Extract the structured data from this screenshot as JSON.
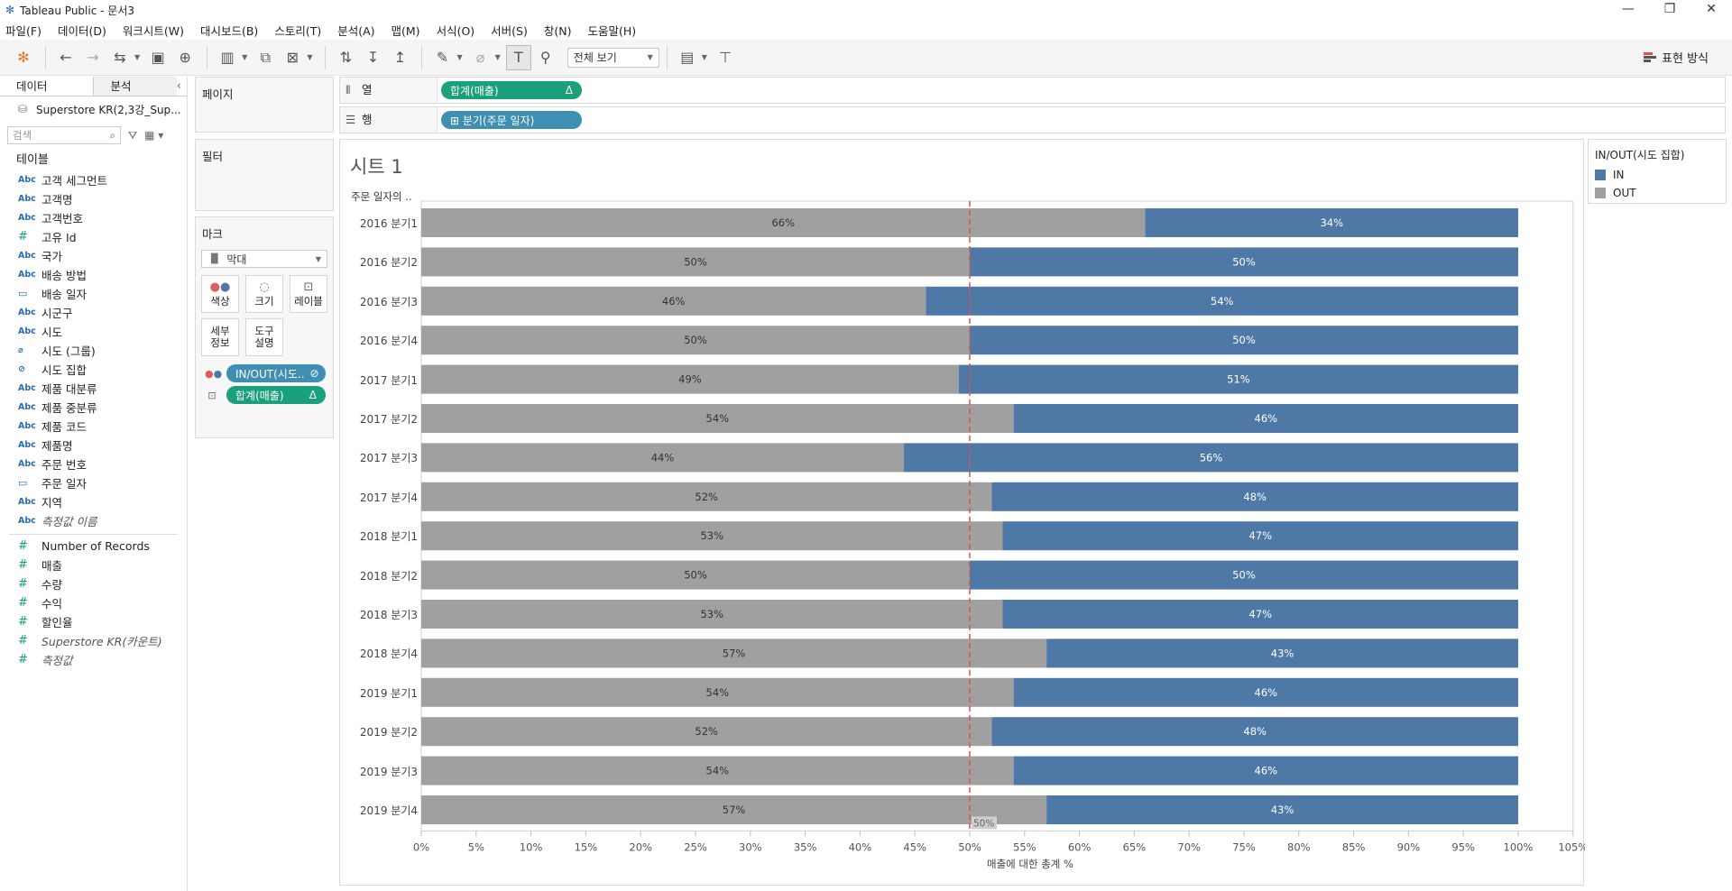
{
  "window": {
    "title": "Tableau Public - 문서3",
    "controls": [
      "—",
      "❐",
      "✕"
    ]
  },
  "menu": [
    "파일(F)",
    "데이터(D)",
    "워크시트(W)",
    "대시보드(B)",
    "스토리(T)",
    "분석(A)",
    "맵(M)",
    "서식(O)",
    "서버(S)",
    "창(N)",
    "도움말(H)"
  ],
  "toolbar": {
    "view_select": "전체 보기",
    "show_me": "표현 방식"
  },
  "data_pane": {
    "tab_data": "데이터",
    "tab_analysis": "분석",
    "datasource": "Superstore KR(2,3강_Sup...",
    "search_placeholder": "검색",
    "tables_title": "테이블",
    "dimensions": [
      {
        "type": "Abc",
        "label": "고객 세그먼트"
      },
      {
        "type": "Abc",
        "label": "고객명"
      },
      {
        "type": "Abc",
        "label": "고객번호"
      },
      {
        "type": "#",
        "label": "고유 Id"
      },
      {
        "type": "Abc",
        "label": "국가"
      },
      {
        "type": "Abc",
        "label": "배송 방법"
      },
      {
        "type": "date",
        "label": "배송 일자"
      },
      {
        "type": "Abc",
        "label": "시군구"
      },
      {
        "type": "Abc",
        "label": "시도"
      },
      {
        "type": "clip",
        "label": "시도 (그룹)"
      },
      {
        "type": "set",
        "label": "시도 집합"
      },
      {
        "type": "Abc",
        "label": "제품 대분류"
      },
      {
        "type": "Abc",
        "label": "제품 중분류"
      },
      {
        "type": "Abc",
        "label": "제품 코드"
      },
      {
        "type": "Abc",
        "label": "제품명"
      },
      {
        "type": "Abc",
        "label": "주문 번호"
      },
      {
        "type": "date",
        "label": "주문 일자"
      },
      {
        "type": "Abc",
        "label": "지역"
      },
      {
        "type": "Abc",
        "label": "측정값 이름",
        "italic": true
      }
    ],
    "measures": [
      {
        "label": "Number of Records"
      },
      {
        "label": "매출"
      },
      {
        "label": "수량"
      },
      {
        "label": "수익"
      },
      {
        "label": "할인율"
      },
      {
        "label": "Superstore KR(카운트)",
        "italic": true
      },
      {
        "label": "측정값",
        "italic": true
      }
    ]
  },
  "cards": {
    "pages": "페이지",
    "filters": "필터",
    "marks": "마크",
    "mark_type": "막대",
    "mark_buttons": {
      "color": "색상",
      "size": "크기",
      "label": "레이블",
      "detail": "세부\n정보",
      "tooltip": "도구\n설명"
    },
    "mark_pills": [
      {
        "label": "IN/OUT(시도..",
        "suffix": "⊘",
        "color": "blue"
      },
      {
        "label": "합계(매출)",
        "suffix": "Δ",
        "color": "green"
      }
    ]
  },
  "shelves": {
    "columns_label": "열",
    "columns_pill": "합계(매출)",
    "columns_pill_suffix": "Δ",
    "rows_label": "행",
    "rows_pill": "⊞ 분기(주문 일자)"
  },
  "sheet": {
    "title": "시트 1",
    "row_header": "주문 일자의 ..",
    "x_axis_title": "매출에 대한 총계 %",
    "reference_label": "50%"
  },
  "legend": {
    "title": "IN/OUT(시도 집합)",
    "items": [
      {
        "label": "IN",
        "color": "#4e79a7"
      },
      {
        "label": "OUT",
        "color": "#a0a0a0"
      }
    ]
  },
  "chart_data": {
    "type": "bar",
    "orientation": "horizontal",
    "stacked": true,
    "categories": [
      "2016 분기1",
      "2016 분기2",
      "2016 분기3",
      "2016 분기4",
      "2017 분기1",
      "2017 분기2",
      "2017 분기3",
      "2017 분기4",
      "2018 분기1",
      "2018 분기2",
      "2018 분기3",
      "2018 분기4",
      "2019 분기1",
      "2019 분기2",
      "2019 분기3",
      "2019 분기4"
    ],
    "series": [
      {
        "name": "OUT",
        "color": "#a0a0a0",
        "values": [
          66,
          50,
          46,
          50,
          49,
          54,
          44,
          52,
          53,
          50,
          53,
          57,
          54,
          52,
          54,
          57
        ],
        "labels": [
          "66%",
          "50%",
          "46%",
          "50%",
          "49%",
          "54%",
          "44%",
          "52%",
          "53%",
          "50%",
          "53%",
          "57%",
          "54%",
          "52%",
          "54%",
          "57%"
        ]
      },
      {
        "name": "IN",
        "color": "#4e79a7",
        "values": [
          34,
          50,
          54,
          50,
          51,
          46,
          56,
          48,
          47,
          50,
          47,
          43,
          46,
          48,
          46,
          43
        ],
        "labels": [
          "34%",
          "50%",
          "54%",
          "50%",
          "51%",
          "46%",
          "56%",
          "48%",
          "47%",
          "50%",
          "47%",
          "43%",
          "46%",
          "48%",
          "46%",
          "43%"
        ]
      }
    ],
    "xlim": [
      0,
      105
    ],
    "xticks": [
      "0%",
      "5%",
      "10%",
      "15%",
      "20%",
      "25%",
      "30%",
      "35%",
      "40%",
      "45%",
      "50%",
      "55%",
      "60%",
      "65%",
      "70%",
      "75%",
      "80%",
      "85%",
      "90%",
      "95%",
      "100%",
      "105%"
    ],
    "reference_line": 50,
    "xlabel": "매출에 대한 총계 %",
    "grid": false
  }
}
